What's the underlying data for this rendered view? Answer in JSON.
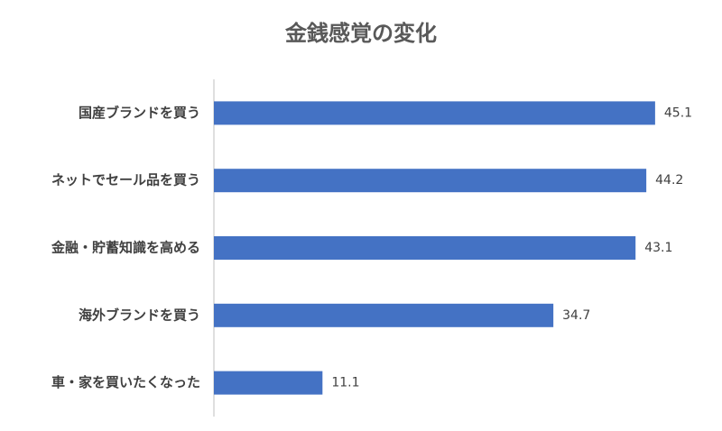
{
  "chart_data": {
    "type": "bar",
    "orientation": "horizontal",
    "title": "金銭感覚の変化",
    "categories": [
      "国産ブランドを買う",
      "ネットでセール品を買う",
      "金融・貯蓄知識を高める",
      "海外ブランドを買う",
      "車・家を買いたくなった"
    ],
    "values": [
      45.1,
      44.2,
      43.1,
      34.7,
      11.1
    ],
    "color": "#4472c4",
    "xlim": [
      0,
      50
    ]
  }
}
